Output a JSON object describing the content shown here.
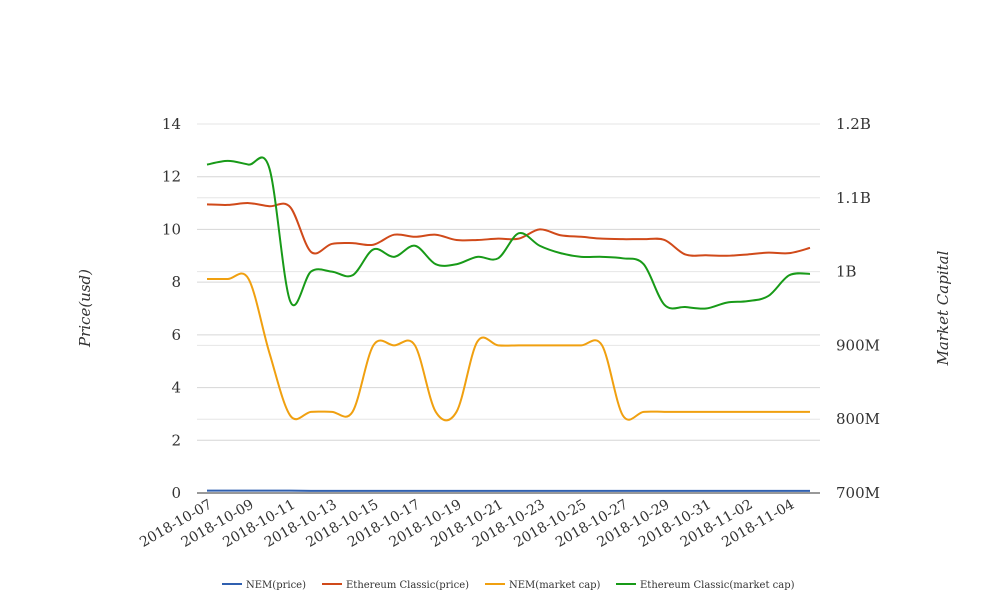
{
  "chart_data": {
    "type": "line",
    "x": [
      "2018-10-07",
      "2018-10-08",
      "2018-10-09",
      "2018-10-10",
      "2018-10-11",
      "2018-10-12",
      "2018-10-13",
      "2018-10-14",
      "2018-10-15",
      "2018-10-16",
      "2018-10-17",
      "2018-10-18",
      "2018-10-19",
      "2018-10-20",
      "2018-10-21",
      "2018-10-22",
      "2018-10-23",
      "2018-10-24",
      "2018-10-25",
      "2018-10-26",
      "2018-10-27",
      "2018-10-28",
      "2018-10-29",
      "2018-10-30",
      "2018-10-31",
      "2018-11-01",
      "2018-11-02",
      "2018-11-03",
      "2018-11-04",
      "2018-11-05"
    ],
    "x_tick_labels": [
      "2018-10-07",
      "2018-10-09",
      "2018-10-11",
      "2018-10-13",
      "2018-10-15",
      "2018-10-17",
      "2018-10-19",
      "2018-10-21",
      "2018-10-23",
      "2018-10-25",
      "2018-10-27",
      "2018-10-29",
      "2018-10-31",
      "2018-11-02",
      "2018-11-04"
    ],
    "left_axis": {
      "label": "Price(usd)",
      "range": [
        0,
        14
      ],
      "ticks": [
        "0",
        "2",
        "4",
        "6",
        "8",
        "10",
        "12",
        "14"
      ]
    },
    "right_axis": {
      "label": "Market Capital",
      "range": [
        700000000,
        1200000000
      ],
      "ticks": [
        "700M",
        "800M",
        "900M",
        "1B",
        "1.1B",
        "1.2B"
      ]
    },
    "grid": true,
    "legend_position": "bottom",
    "series": [
      {
        "name": "NEM(price)",
        "axis": "left",
        "color": "#3060b0",
        "values": [
          0.09,
          0.09,
          0.09,
          0.09,
          0.09,
          0.08,
          0.08,
          0.08,
          0.08,
          0.08,
          0.08,
          0.08,
          0.08,
          0.08,
          0.08,
          0.08,
          0.08,
          0.08,
          0.08,
          0.08,
          0.08,
          0.08,
          0.08,
          0.08,
          0.08,
          0.08,
          0.08,
          0.08,
          0.08,
          0.08
        ]
      },
      {
        "name": "Ethereum Classic(price)",
        "axis": "left",
        "color": "#d04a1a",
        "values": [
          10.95,
          10.93,
          11.0,
          10.88,
          10.85,
          9.15,
          9.45,
          9.48,
          9.42,
          9.8,
          9.72,
          9.8,
          9.6,
          9.6,
          9.65,
          9.65,
          10.0,
          9.78,
          9.72,
          9.65,
          9.63,
          9.63,
          9.6,
          9.05,
          9.02,
          9.0,
          9.05,
          9.12,
          9.1,
          9.3
        ]
      },
      {
        "name": "NEM(market cap)",
        "axis": "right",
        "color": "#f0a010",
        "values": [
          990000000,
          990000000,
          990000000,
          890000000,
          805000000,
          810000000,
          810000000,
          810000000,
          900000000,
          900000000,
          900000000,
          810000000,
          810000000,
          905000000,
          900000000,
          900000000,
          900000000,
          900000000,
          900000000,
          900000000,
          805000000,
          810000000,
          810000000,
          810000000,
          810000000,
          810000000,
          810000000,
          810000000,
          810000000,
          810000000
        ]
      },
      {
        "name": "Ethereum Classic(market cap)",
        "axis": "right",
        "color": "#189a18",
        "values": [
          1145000000,
          1150000000,
          1145000000,
          1140000000,
          960000000,
          1000000000,
          1000000000,
          995000000,
          1030000000,
          1020000000,
          1035000000,
          1010000000,
          1010000000,
          1020000000,
          1018000000,
          1052000000,
          1035000000,
          1025000000,
          1020000000,
          1020000000,
          1018000000,
          1010000000,
          955000000,
          952000000,
          950000000,
          958000000,
          960000000,
          967000000,
          995000000,
          997000000
        ]
      }
    ]
  }
}
